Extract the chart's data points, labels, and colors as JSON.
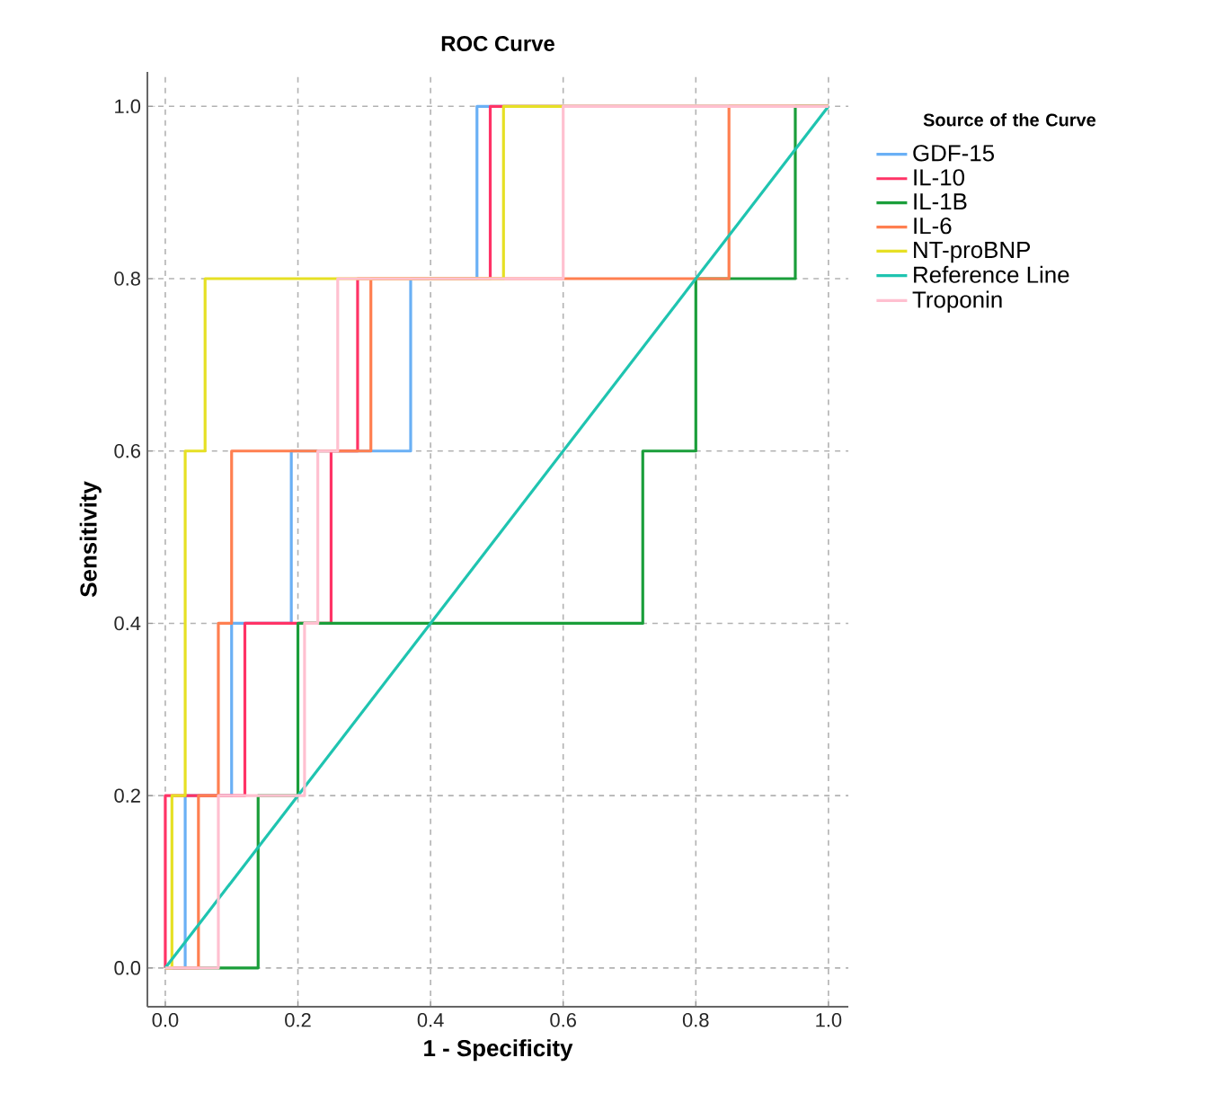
{
  "chart_data": {
    "type": "line",
    "title": "ROC Curve",
    "xlabel": "1 - Specificity",
    "ylabel": "Sensitivity",
    "legend_title": "Source of the Curve",
    "xlim": [
      -0.027,
      1.03
    ],
    "ylim": [
      -0.045,
      1.04
    ],
    "xticks": [
      {
        "value": 0,
        "label": "0.0"
      },
      {
        "value": 0.2,
        "label": "0.2"
      },
      {
        "value": 0.4,
        "label": "0.4"
      },
      {
        "value": 0.6,
        "label": "0.6"
      },
      {
        "value": 0.8,
        "label": "0.8"
      },
      {
        "value": 1,
        "label": "1.0"
      }
    ],
    "yticks": [
      {
        "value": 0,
        "label": "0.0"
      },
      {
        "value": 0.2,
        "label": "0.2"
      },
      {
        "value": 0.4,
        "label": "0.4"
      },
      {
        "value": 0.6,
        "label": "0.6"
      },
      {
        "value": 0.8,
        "label": "0.8"
      },
      {
        "value": 1,
        "label": "1.0"
      }
    ],
    "grid": true,
    "legend": "right",
    "line_style": "solid",
    "marker": "none",
    "series": [
      {
        "name": "GDF-15",
        "color": "#6ab0f5",
        "x": [
          0,
          0.03,
          0.03,
          0.1,
          0.1,
          0.19,
          0.19,
          0.37,
          0.37,
          0.47,
          0.47,
          1
        ],
        "values": [
          0,
          0,
          0.2,
          0.2,
          0.4,
          0.4,
          0.6,
          0.6,
          0.8,
          0.8,
          1,
          1
        ]
      },
      {
        "name": "IL-10",
        "color": "#ff3366",
        "x": [
          0,
          0,
          0.12,
          0.12,
          0.25,
          0.25,
          0.29,
          0.29,
          0.49,
          0.49,
          1
        ],
        "values": [
          0,
          0.2,
          0.2,
          0.4,
          0.4,
          0.6,
          0.6,
          0.8,
          0.8,
          1,
          1
        ]
      },
      {
        "name": "IL-1B",
        "color": "#1a9e3a",
        "x": [
          0,
          0.14,
          0.14,
          0.2,
          0.2,
          0.72,
          0.72,
          0.8,
          0.8,
          0.95,
          0.95,
          1
        ],
        "values": [
          0,
          0,
          0.2,
          0.2,
          0.4,
          0.4,
          0.6,
          0.6,
          0.8,
          0.8,
          1,
          1
        ]
      },
      {
        "name": "IL-6",
        "color": "#ff7f50",
        "x": [
          0,
          0.05,
          0.05,
          0.08,
          0.08,
          0.1,
          0.1,
          0.31,
          0.31,
          0.85,
          0.85,
          1
        ],
        "values": [
          0,
          0,
          0.2,
          0.2,
          0.4,
          0.4,
          0.6,
          0.6,
          0.8,
          0.8,
          1,
          1
        ]
      },
      {
        "name": "NT-proBNP",
        "color": "#e6e024",
        "x": [
          0,
          0.01,
          0.01,
          0.03,
          0.03,
          0.06,
          0.06,
          0.51,
          0.51,
          1
        ],
        "values": [
          0,
          0,
          0.2,
          0.2,
          0.6,
          0.6,
          0.8,
          0.8,
          1,
          1
        ]
      },
      {
        "name": "Reference Line",
        "color": "#1fc4b0",
        "x": [
          0,
          1
        ],
        "values": [
          0,
          1
        ]
      },
      {
        "name": "Troponin",
        "color": "#ffc0d0",
        "x": [
          0,
          0.08,
          0.08,
          0.21,
          0.21,
          0.23,
          0.23,
          0.26,
          0.26,
          0.6,
          0.6,
          1
        ],
        "values": [
          0,
          0,
          0.2,
          0.2,
          0.4,
          0.4,
          0.6,
          0.6,
          0.8,
          0.8,
          1,
          1
        ]
      }
    ]
  }
}
